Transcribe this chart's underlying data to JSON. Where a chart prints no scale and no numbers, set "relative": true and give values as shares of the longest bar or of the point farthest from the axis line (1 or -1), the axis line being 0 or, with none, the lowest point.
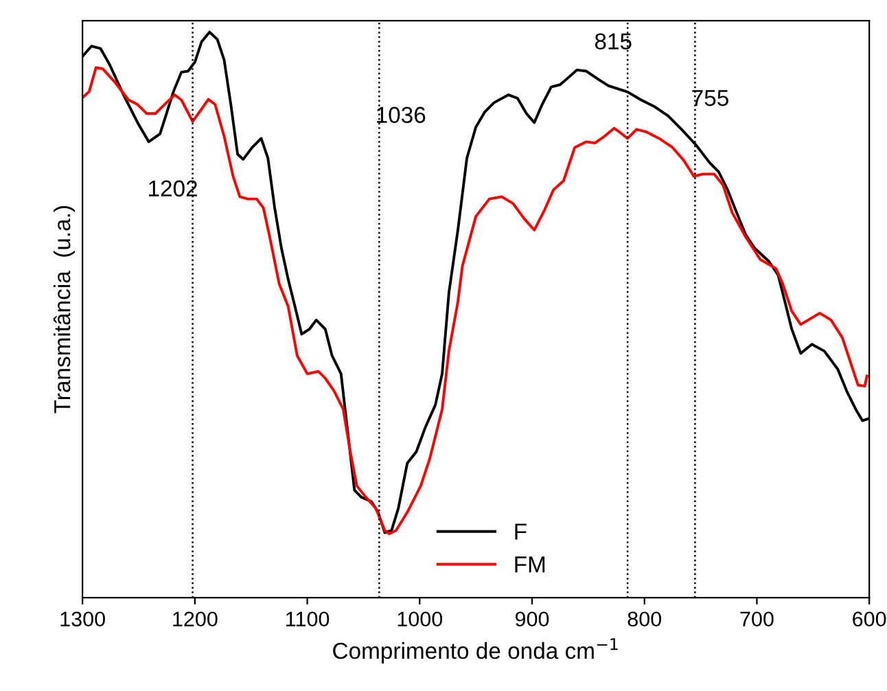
{
  "chart_data": {
    "type": "line",
    "relative": true,
    "xlabel": "Comprimento de onda cm$^{−1}$",
    "ylabel": "Transmitância  (u.a.)",
    "xlim": [
      1300,
      600
    ],
    "xticks": [
      1300,
      1200,
      1100,
      1000,
      900,
      800,
      700,
      600
    ],
    "grid": false,
    "legend": "bottom",
    "line_style": "solid",
    "tick_labels": "x",
    "ref_lines": [
      {
        "axis": "x",
        "value": 1202,
        "label": "1202",
        "color": "#000000",
        "line_style": "dotted"
      },
      {
        "axis": "x",
        "value": 1036,
        "label": "1036",
        "color": "#000000",
        "line_style": "dotted"
      },
      {
        "axis": "x",
        "value": 815,
        "label": "815",
        "color": "#000000",
        "line_style": "dotted"
      },
      {
        "axis": "x",
        "value": 755,
        "label": "755",
        "color": "#000000",
        "line_style": "dotted"
      }
    ],
    "series": [
      {
        "name": "F",
        "color": "#000000",
        "x": [
          1300,
          1292,
          1284,
          1276,
          1263,
          1251,
          1241,
          1231,
          1219,
          1212,
          1206,
          1200,
          1194,
          1187,
          1180,
          1174,
          1168,
          1162,
          1157,
          1149,
          1141,
          1135,
          1129,
          1123,
          1117,
          1111,
          1105,
          1098,
          1092,
          1084,
          1078,
          1070,
          1064,
          1058,
          1052,
          1043,
          1037,
          1031,
          1025,
          1019,
          1011,
          1003,
          995,
          986,
          980,
          974,
          966,
          958,
          950,
          942,
          934,
          921,
          913,
          905,
          898,
          891,
          883,
          875,
          868,
          860,
          852,
          840,
          832,
          815,
          803,
          791,
          779,
          767,
          754,
          742,
          734,
          726,
          718,
          710,
          702,
          689,
          681,
          675,
          669,
          661,
          651,
          640,
          628,
          620,
          612,
          606,
          600
        ],
        "values": [
          0.957,
          0.975,
          0.971,
          0.943,
          0.887,
          0.84,
          0.806,
          0.82,
          0.895,
          0.929,
          0.931,
          0.947,
          0.983,
          1.0,
          0.987,
          0.951,
          0.872,
          0.784,
          0.775,
          0.796,
          0.812,
          0.777,
          0.689,
          0.618,
          0.563,
          0.515,
          0.466,
          0.475,
          0.491,
          0.475,
          0.428,
          0.396,
          0.293,
          0.19,
          0.178,
          0.17,
          0.151,
          0.115,
          0.119,
          0.158,
          0.238,
          0.258,
          0.301,
          0.341,
          0.396,
          0.539,
          0.65,
          0.777,
          0.832,
          0.859,
          0.875,
          0.889,
          0.883,
          0.856,
          0.84,
          0.872,
          0.903,
          0.907,
          0.919,
          0.933,
          0.931,
          0.915,
          0.905,
          0.894,
          0.88,
          0.868,
          0.852,
          0.828,
          0.8,
          0.769,
          0.753,
          0.721,
          0.681,
          0.642,
          0.618,
          0.594,
          0.57,
          0.523,
          0.475,
          0.432,
          0.448,
          0.436,
          0.404,
          0.365,
          0.333,
          0.313,
          0.317
        ]
      },
      {
        "name": "FM",
        "color": "#ff0000",
        "x": [
          1300,
          1294,
          1288,
          1282,
          1271,
          1259,
          1251,
          1243,
          1235,
          1227,
          1218,
          1212,
          1202,
          1194,
          1188,
          1182,
          1174,
          1166,
          1160,
          1153,
          1145,
          1139,
          1133,
          1125,
          1117,
          1109,
          1100,
          1090,
          1084,
          1076,
          1068,
          1062,
          1056,
          1048,
          1039,
          1031,
          1027,
          1021,
          1011,
          999,
          991,
          980,
          974,
          966,
          962,
          950,
          938,
          927,
          917,
          907,
          898,
          889,
          881,
          872,
          862,
          852,
          844,
          836,
          827,
          822,
          815,
          807,
          799,
          787,
          775,
          765,
          756,
          748,
          738,
          730,
          722,
          710,
          697,
          683,
          677,
          669,
          661,
          644,
          634,
          624,
          616,
          610,
          604,
          602
        ],
        "values": [
          0.884,
          0.895,
          0.937,
          0.935,
          0.911,
          0.88,
          0.872,
          0.856,
          0.856,
          0.872,
          0.889,
          0.88,
          0.842,
          0.864,
          0.881,
          0.872,
          0.816,
          0.745,
          0.709,
          0.705,
          0.705,
          0.689,
          0.634,
          0.555,
          0.515,
          0.428,
          0.396,
          0.4,
          0.388,
          0.365,
          0.333,
          0.261,
          0.198,
          0.178,
          0.158,
          0.119,
          0.113,
          0.119,
          0.151,
          0.198,
          0.246,
          0.333,
          0.436,
          0.523,
          0.586,
          0.674,
          0.705,
          0.709,
          0.697,
          0.67,
          0.65,
          0.685,
          0.721,
          0.737,
          0.796,
          0.806,
          0.804,
          0.815,
          0.83,
          0.823,
          0.812,
          0.828,
          0.824,
          0.812,
          0.796,
          0.773,
          0.745,
          0.749,
          0.749,
          0.729,
          0.681,
          0.638,
          0.598,
          0.582,
          0.555,
          0.507,
          0.483,
          0.503,
          0.491,
          0.46,
          0.412,
          0.376,
          0.374,
          0.392
        ]
      }
    ]
  }
}
